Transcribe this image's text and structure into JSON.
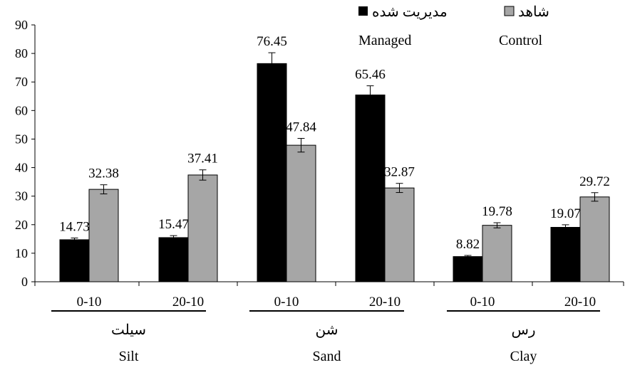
{
  "chart_data": {
    "type": "bar",
    "ylim": [
      0,
      90
    ],
    "yticks": [
      0,
      10,
      20,
      30,
      40,
      50,
      60,
      70,
      80,
      90
    ],
    "categories": [
      "0-10",
      "20-10",
      "0-10",
      "20-10",
      "0-10",
      "20-10"
    ],
    "groups": [
      {
        "label_fa": "سیلت",
        "label_en": "Silt"
      },
      {
        "label_fa": "شن",
        "label_en": "Sand"
      },
      {
        "label_fa": "رس",
        "label_en": "Clay"
      }
    ],
    "series": [
      {
        "name_fa": "مدیریت شده",
        "name_en": "Managed",
        "color": "#000000",
        "values": [
          14.73,
          15.47,
          76.45,
          65.46,
          8.82,
          19.07
        ],
        "errors": [
          0.6,
          0.7,
          3.8,
          3.2,
          0.4,
          0.9
        ]
      },
      {
        "name_fa": "شاهد",
        "name_en": "Control",
        "color": "#a6a6a6",
        "values": [
          32.38,
          37.41,
          47.84,
          32.87,
          19.78,
          29.72
        ],
        "errors": [
          1.6,
          1.8,
          2.4,
          1.6,
          0.9,
          1.5
        ]
      }
    ],
    "value_labels": [
      [
        "14.73",
        "15.47",
        "76.45",
        "65.46",
        "8.82",
        "19.07"
      ],
      [
        "32.38",
        "37.41",
        "47.84",
        "32.87",
        "19.78",
        "29.72"
      ]
    ],
    "legend_position": "top-right",
    "grid": false
  }
}
